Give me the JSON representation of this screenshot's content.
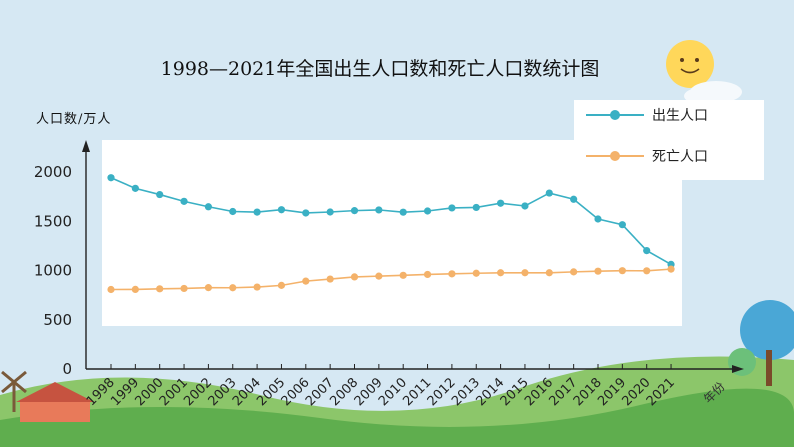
{
  "chart_data": {
    "type": "line",
    "title": "1998—2021年全国出生人口数和死亡人口数统计图",
    "ylabel": "人口数/万人",
    "xlabel": "年份",
    "categories": [
      "1998",
      "1999",
      "2000",
      "2001",
      "2002",
      "2003",
      "2004",
      "2005",
      "2006",
      "2007",
      "2008",
      "2009",
      "2010",
      "2011",
      "2012",
      "2013",
      "2014",
      "2015",
      "2016",
      "2017",
      "2018",
      "2019",
      "2020",
      "2021"
    ],
    "ylim": [
      0,
      2000
    ],
    "yticks": [
      "0",
      "500",
      "1000",
      "1500",
      "2000"
    ],
    "series": [
      {
        "name": "出生人口",
        "color": "#3ab0c4",
        "values": [
          1942,
          1834,
          1771,
          1702,
          1647,
          1599,
          1593,
          1617,
          1584,
          1594,
          1608,
          1615,
          1592,
          1604,
          1635,
          1640,
          1683,
          1655,
          1786,
          1723,
          1523,
          1465,
          1202,
          1062
        ]
      },
      {
        "name": "死亡人口",
        "color": "#f4b26a",
        "values": [
          807,
          808,
          814,
          818,
          826,
          825,
          832,
          849,
          892,
          913,
          935,
          943,
          951,
          960,
          966,
          972,
          977,
          977,
          977,
          986,
          993,
          998,
          997,
          1014
        ]
      }
    ],
    "legend_position": "top-right"
  }
}
